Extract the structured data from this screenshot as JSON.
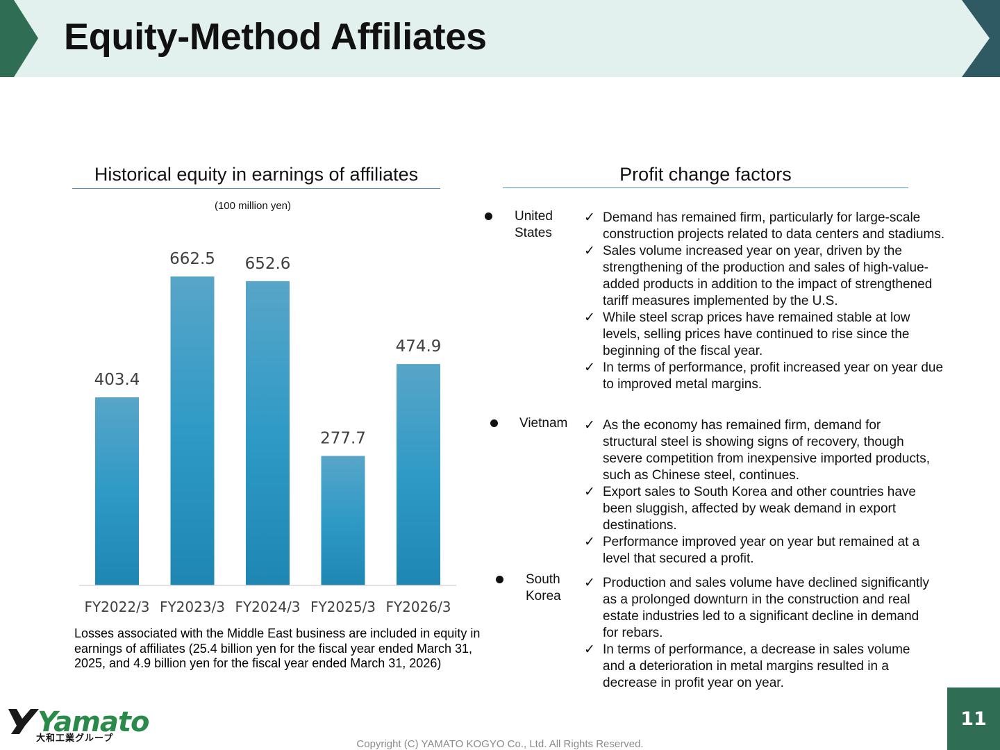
{
  "header": {
    "title": "Equity-Method Affiliates"
  },
  "left_panel": {
    "heading": "Historical equity in earnings of affiliates",
    "unit": "(100 million yen)",
    "note": "Losses associated with the Middle East business are included in equity in earnings of affiliates (25.4 billion yen for the fiscal year ended March 31, 2025, and 4.9 billion yen for the fiscal year ended March 31, 2026)"
  },
  "chart_data": {
    "type": "bar",
    "categories": [
      "FY2022/3",
      "FY2023/3",
      "FY2024/3",
      "FY2025/3",
      "FY2026/3"
    ],
    "values": [
      403.4,
      662.5,
      652.6,
      277.7,
      474.9
    ],
    "value_labels": [
      "403.4",
      "662.5",
      "652.6",
      "277.7",
      "474.9"
    ],
    "title": "",
    "xlabel": "",
    "ylabel": "",
    "ylim": [
      0,
      700
    ],
    "grid": false,
    "bar_color": "#2e97c4"
  },
  "right_panel": {
    "heading": "Profit change factors",
    "regions": [
      {
        "name": "United States",
        "points": [
          "Demand has remained firm, particularly for large-scale construction projects related to data centers and stadiums.",
          "Sales volume increased year on year, driven by the strengthening of the production and sales of high-value-added products in addition to the impact of strengthened tariff measures implemented by the U.S.",
          "While steel scrap prices have remained stable at low levels, selling prices have continued to rise since the beginning of the fiscal year.",
          "In terms of performance, profit increased year on year due to improved metal margins."
        ]
      },
      {
        "name": "Vietnam",
        "points": [
          "As the economy has remained firm, demand for structural steel is showing signs of recovery, though severe competition from inexpensive imported products, such as Chinese steel, continues.",
          "Export sales to South Korea and other countries have been sluggish, affected by weak demand in export destinations.",
          "Performance improved year on year but remained at a level that secured a profit."
        ]
      },
      {
        "name": "South Korea",
        "points": [
          "Production and sales volume have declined significantly as a prolonged downturn in the construction and real estate industries led to a significant decline in demand for rebars.",
          "In terms of performance, a decrease in sales volume and a deterioration in metal margins resulted in a decrease in profit year on year."
        ]
      }
    ]
  },
  "footer": {
    "logo_text": "Yamato",
    "logo_sub": "大和工業グループ",
    "copyright": "Copyright (C) YAMATO KOGYO Co., Ltd. All Rights Reserved.",
    "page_number": "11"
  },
  "colors": {
    "banner_bg": "#e3f1ee",
    "banner_left_arrow": "#2f6e55",
    "banner_right_arrow": "#2f5a63",
    "rule": "#4a90b8",
    "logo_green": "#2a8a4a",
    "page_box": "#2f6e55"
  }
}
